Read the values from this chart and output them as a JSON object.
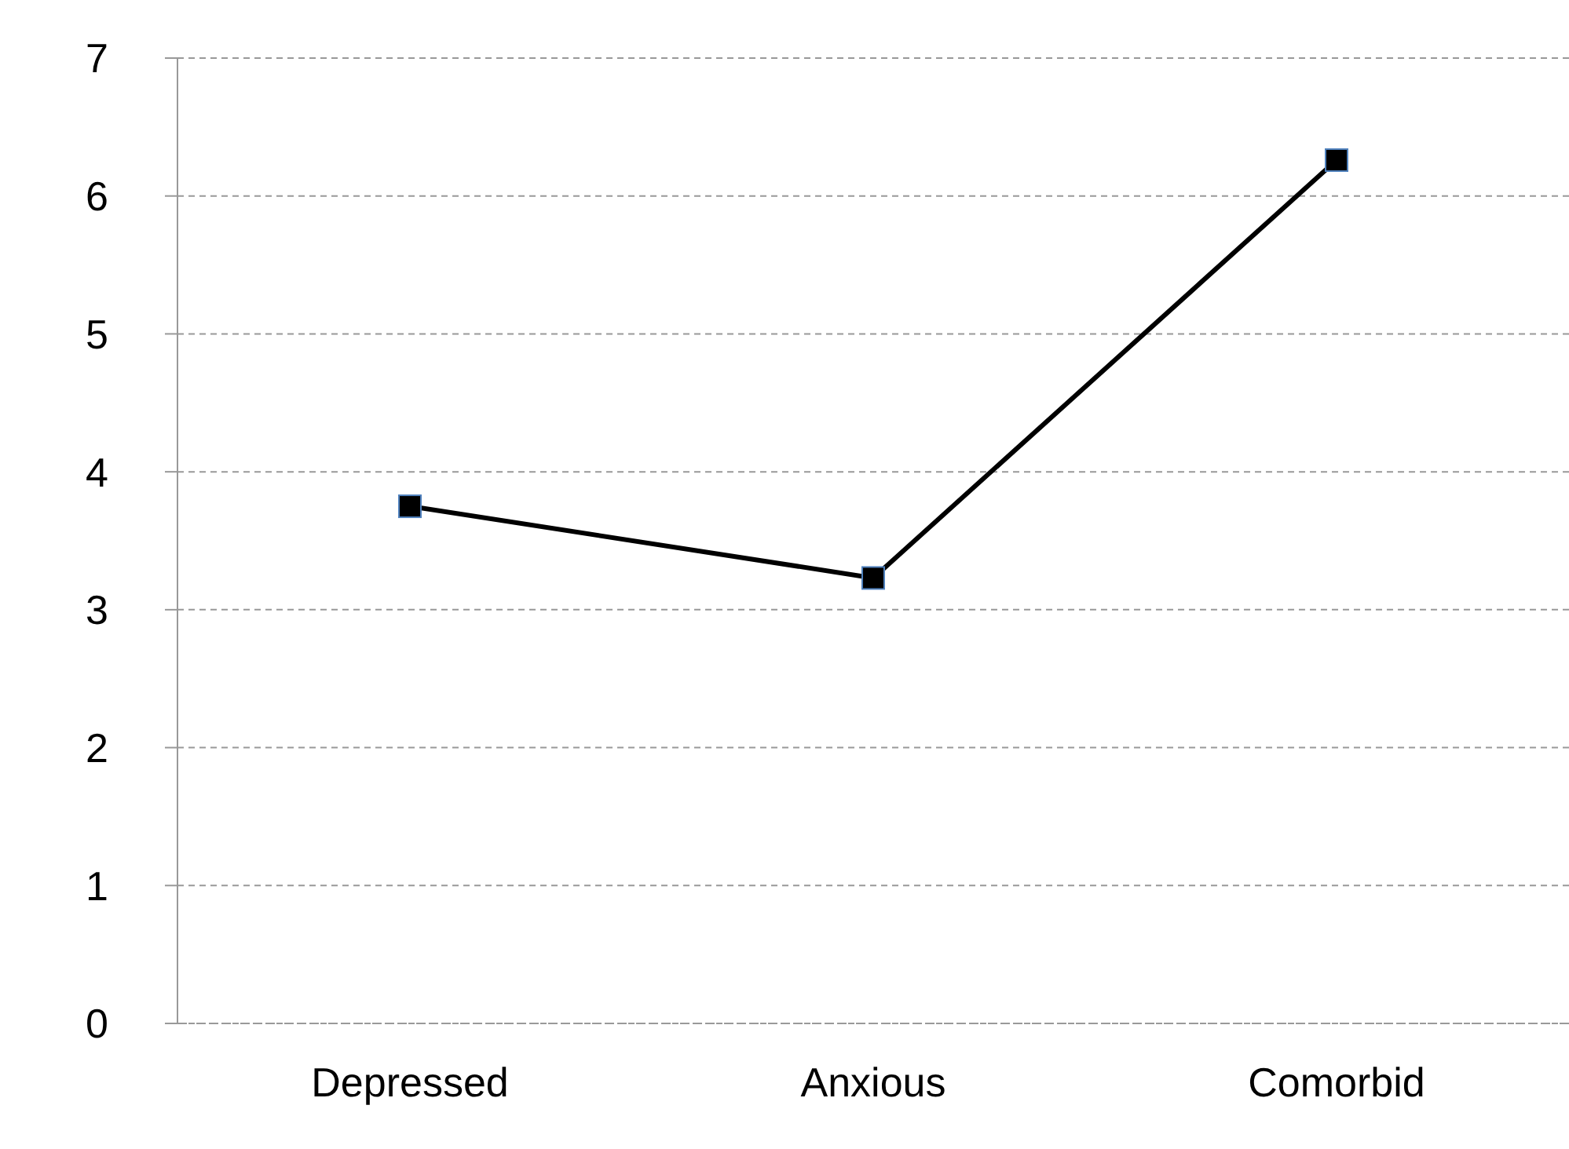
{
  "chart_data": {
    "type": "line",
    "categories": [
      "Depressed",
      "Anxious",
      "Comorbid"
    ],
    "series": [
      {
        "color": "#000000",
        "values": [
          3.75,
          3.23,
          6.26
        ]
      }
    ],
    "ylim": [
      0,
      7
    ],
    "yticks": [
      0,
      1,
      2,
      3,
      4,
      5,
      6,
      7
    ],
    "grid": "y",
    "marker": "square",
    "line_style": "solid"
  }
}
